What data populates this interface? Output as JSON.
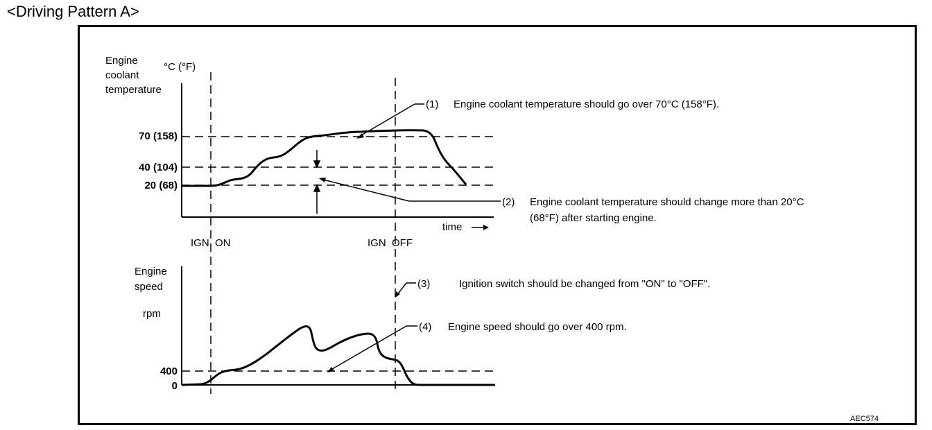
{
  "page_title": "<Driving Pattern A>",
  "temperature_chart": {
    "y_label_lines": [
      "Engine",
      "coolant",
      "temperature"
    ],
    "unit": "°C (°F)",
    "ticks": [
      "70 (158)",
      "40 (104)",
      "20 (68)"
    ],
    "x_label": "time",
    "event_labels": [
      "IGN  ON",
      "IGN  OFF"
    ]
  },
  "speed_chart": {
    "y_label_lines": [
      "Engine",
      "speed"
    ],
    "unit": "rpm",
    "ticks": [
      "400",
      "0"
    ]
  },
  "callouts": [
    {
      "number": "(1)",
      "text": "Engine coolant temperature should go over 70°C (158°F)."
    },
    {
      "number": "(2)",
      "text_lines": [
        "Engine coolant temperature should change more than 20°C",
        "(68°F) after starting engine."
      ]
    },
    {
      "number": "(3)",
      "text": "Ignition switch should be changed from \"ON\" to \"OFF\"."
    },
    {
      "number": "(4)",
      "text": "Engine speed should go over 400 rpm."
    }
  ],
  "figure_code": "AEC574"
}
